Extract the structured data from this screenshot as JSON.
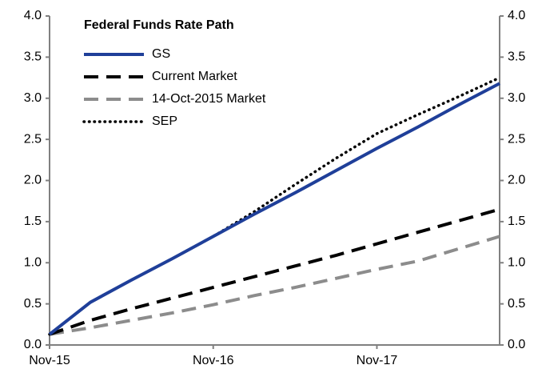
{
  "chart_data": {
    "type": "line",
    "legend_title": "Federal Funds Rate Path",
    "categories": [
      "Nov-15",
      null,
      null,
      null,
      "Nov-16",
      null,
      null,
      null,
      "Nov-17",
      null,
      null,
      null
    ],
    "series": [
      {
        "name": "GS",
        "color": "#1f3f99",
        "style": "solid",
        "values": [
          0.13,
          0.52,
          0.79,
          1.05,
          1.32,
          1.59,
          1.85,
          2.12,
          2.39,
          2.65,
          2.92,
          3.18
        ]
      },
      {
        "name": "Current Market",
        "color": "#000000",
        "style": "dashed",
        "values": [
          0.13,
          0.3,
          0.44,
          0.57,
          0.7,
          0.83,
          0.96,
          1.09,
          1.23,
          1.37,
          1.51,
          1.65
        ]
      },
      {
        "name": "14-Oct-2015 Market",
        "color": "#8c8c8c",
        "style": "dashed",
        "values": [
          0.13,
          0.21,
          0.3,
          0.39,
          0.49,
          0.6,
          0.7,
          0.81,
          0.92,
          1.02,
          1.17,
          1.32
        ]
      },
      {
        "name": "SEP",
        "color": "#000000",
        "style": "dotted",
        "values": [
          0.13,
          0.52,
          0.79,
          1.05,
          1.32,
          1.62,
          1.95,
          2.27,
          2.57,
          2.8,
          3.02,
          3.25
        ]
      }
    ],
    "ylim": [
      0,
      4
    ],
    "y2lim": [
      0,
      4
    ],
    "yticks": [
      {
        "value": 0,
        "label": "0.0"
      },
      0.5,
      {
        "value": 1,
        "label": "1.0"
      },
      1.5,
      {
        "value": 2,
        "label": "2.0"
      },
      2.5,
      {
        "value": 3,
        "label": "3.0"
      },
      3.5,
      {
        "value": 4,
        "label": "4.0"
      }
    ],
    "y2ticks": [
      {
        "value": 0,
        "label": "0.0"
      },
      0.5,
      {
        "value": 1,
        "label": "1.0"
      },
      1.5,
      {
        "value": 2,
        "label": "2.0"
      },
      2.5,
      {
        "value": 3,
        "label": "3.0"
      },
      3.5,
      {
        "value": 4,
        "label": "4.0"
      }
    ],
    "grid": false
  }
}
